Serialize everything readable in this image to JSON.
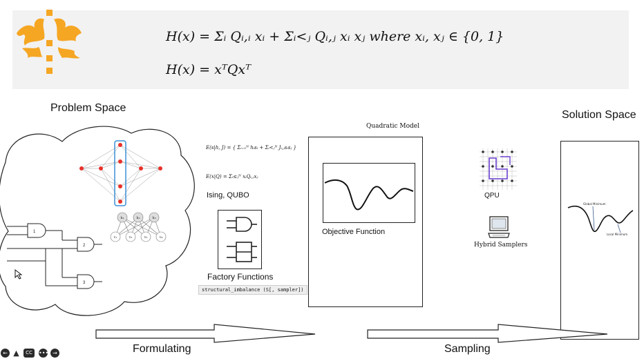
{
  "banner": {
    "formula_line1": "H(x) = Σᵢ Qᵢ,ᵢ xᵢ + Σᵢ<ⱼ Qᵢ,ⱼ xᵢ xⱼ    where xᵢ, xⱼ ∈ {0, 1}",
    "formula_line2": "H(x) = xᵀQxᵀ"
  },
  "sections": {
    "problem_space": "Problem Space",
    "solution_space": "Solution Space",
    "quadratic_model": "Quadratic Model"
  },
  "formulating": {
    "ising_label": "Ising, QUBO",
    "eq_ising": "E(s|h, J) = { Σᵢ₌₁ᴺ hᵢsᵢ + Σᵢ<ⱼᴺ Jᵢ,ⱼsᵢsⱼ }",
    "eq_qubo": "E(x|Q) = Σᵢ≤ⱼᴺ xᵢQᵢ,ⱼxⱼ",
    "factory_label": "Factory Functions",
    "code_snippet": "structural_imbalance (S[, sampler])",
    "arrow_label": "Formulating"
  },
  "model": {
    "objective_label": "Objective Function"
  },
  "sampling": {
    "qpu_label": "QPU",
    "hybrid_label": "Hybrid Samplers",
    "arrow_label": "Sampling"
  },
  "solution": {
    "global_min_label": "Global Minimum",
    "local_min_label": "Local Minimum"
  },
  "network": {
    "hidden_labels": [
      "h₁",
      "h₂",
      "h₃"
    ],
    "visible_labels": [
      "v₁",
      "v₂",
      "v₃",
      "v₄"
    ]
  },
  "circuit": {
    "gate_labels": [
      "1",
      "2",
      "3"
    ]
  },
  "colors": {
    "logo": "#f5a623",
    "node_red": "#e8322a",
    "highlight_blue": "#3a8fd6",
    "qpu_purple": "#6a3fd0"
  },
  "controls": [
    "prev-icon",
    "annotate-icon",
    "cc-icon",
    "more-icon",
    "next-icon"
  ]
}
